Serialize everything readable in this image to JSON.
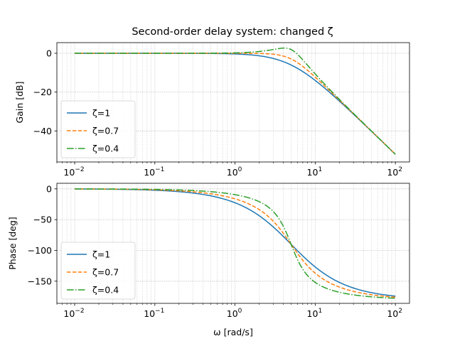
{
  "figure": {
    "title": "Second-order delay system: changed ζ"
  },
  "chart_data": [
    {
      "type": "line",
      "xscale": "log",
      "title": "Second-order delay system: changed ζ",
      "xlabel": "",
      "ylabel": "Gain [dB]",
      "xlim": [
        0.006,
        150
      ],
      "ylim": [
        -56,
        5.5
      ],
      "x_ticks": [
        0.01,
        0.1,
        1,
        10,
        100
      ],
      "x_tick_labels": [
        [
          "10",
          "−2"
        ],
        [
          "10",
          "−1"
        ],
        [
          "10",
          "0"
        ],
        [
          "10",
          "1"
        ],
        [
          "10",
          "2"
        ]
      ],
      "y_ticks": [
        0,
        -20,
        -40
      ],
      "y_tick_labels": [
        "0",
        "−20",
        "−40"
      ],
      "grid": true,
      "legend_position": "lower-left",
      "x_range": [
        0.01,
        100
      ],
      "omega_n": 5,
      "series": [
        {
          "name": "ζ=1",
          "zeta": 1.0,
          "color": "#1f77b4",
          "dash": "solid"
        },
        {
          "name": "ζ=0.7",
          "zeta": 0.7,
          "color": "#ff7f0e",
          "dash": "dashed"
        },
        {
          "name": "ζ=0.4",
          "zeta": 0.4,
          "color": "#2ca02c",
          "dash": "dashdot"
        }
      ]
    },
    {
      "type": "line",
      "xscale": "log",
      "title": "",
      "xlabel": "ω [rad/s]",
      "ylabel": "Phase [deg]",
      "xlim": [
        0.006,
        150
      ],
      "ylim": [
        -186,
        9
      ],
      "x_ticks": [
        0.01,
        0.1,
        1,
        10,
        100
      ],
      "x_tick_labels": [
        [
          "10",
          "−2"
        ],
        [
          "10",
          "−1"
        ],
        [
          "10",
          "0"
        ],
        [
          "10",
          "1"
        ],
        [
          "10",
          "2"
        ]
      ],
      "y_ticks": [
        0,
        -50,
        -100,
        -150
      ],
      "y_tick_labels": [
        "0",
        "−50",
        "−100",
        "−150"
      ],
      "grid": true,
      "legend_position": "lower-left",
      "x_range": [
        0.01,
        100
      ],
      "omega_n": 5,
      "series": [
        {
          "name": "ζ=1",
          "zeta": 1.0,
          "color": "#1f77b4",
          "dash": "solid"
        },
        {
          "name": "ζ=0.7",
          "zeta": 0.7,
          "color": "#ff7f0e",
          "dash": "dashed"
        },
        {
          "name": "ζ=0.4",
          "zeta": 0.4,
          "color": "#2ca02c",
          "dash": "dashdot"
        }
      ]
    }
  ]
}
